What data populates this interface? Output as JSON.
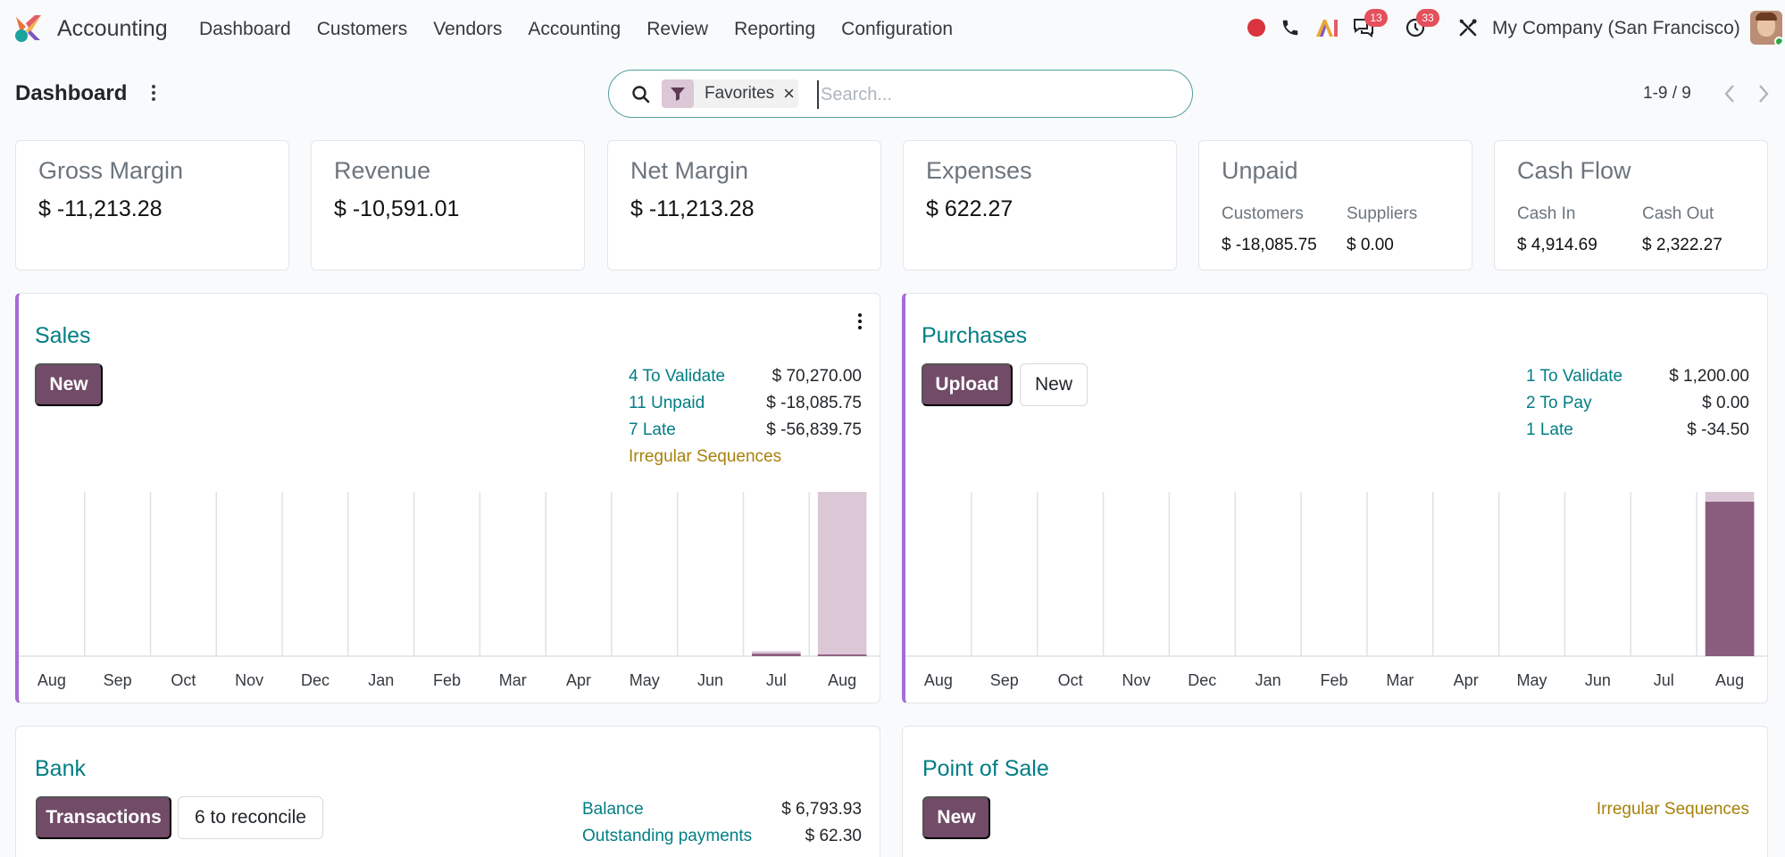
{
  "navbar": {
    "app_name": "Accounting",
    "menu": [
      "Dashboard",
      "Customers",
      "Vendors",
      "Accounting",
      "Review",
      "Reporting",
      "Configuration"
    ],
    "messages_count": "13",
    "activities_count": "33",
    "company": "My Company (San Francisco)",
    "icons": [
      "record-icon",
      "phone-icon",
      "ai-icon",
      "messages-icon",
      "activity-clock-icon",
      "tools-icon"
    ]
  },
  "control_panel": {
    "title": "Dashboard",
    "search": {
      "facet": "Favorites",
      "placeholder": "Search...",
      "value": ""
    },
    "pager": "1-9 / 9"
  },
  "kpis": {
    "gross_margin": {
      "title": "Gross Margin",
      "value": "$ -11,213.28"
    },
    "revenue": {
      "title": "Revenue",
      "value": "$ -10,591.01"
    },
    "net_margin": {
      "title": "Net Margin",
      "value": "$ -11,213.28"
    },
    "expenses": {
      "title": "Expenses",
      "value": "$ 622.27"
    },
    "unpaid": {
      "title": "Unpaid",
      "customers_label": "Customers",
      "customers_value": "$ -18,085.75",
      "suppliers_label": "Suppliers",
      "suppliers_value": "$ 0.00"
    },
    "cash_flow": {
      "title": "Cash Flow",
      "in_label": "Cash In",
      "in_value": "$ 4,914.69",
      "out_label": "Cash Out",
      "out_value": "$ 2,322.27"
    }
  },
  "sales": {
    "title": "Sales",
    "new_button": "New",
    "stats": [
      {
        "label": "4 To Validate",
        "value": "$ 70,270.00"
      },
      {
        "label": "11 Unpaid",
        "value": "$ -18,085.75"
      },
      {
        "label": "7 Late",
        "value": "$ -56,839.75"
      }
    ],
    "warning": "Irregular Sequences"
  },
  "purchases": {
    "title": "Purchases",
    "upload_button": "Upload",
    "new_button": "New",
    "stats": [
      {
        "label": "1 To Validate",
        "value": "$ 1,200.00"
      },
      {
        "label": "2 To Pay",
        "value": "$ 0.00"
      },
      {
        "label": "1 Late",
        "value": "$ -34.50"
      }
    ]
  },
  "bank": {
    "title": "Bank",
    "transactions_button": "Transactions",
    "reconcile_button": "6 to reconcile",
    "stats": [
      {
        "label": "Balance",
        "value": "$ 6,793.93"
      },
      {
        "label": "Outstanding payments",
        "value": "$ 62.30"
      }
    ]
  },
  "pos": {
    "title": "Point of Sale",
    "new_button": "New",
    "warning": "Irregular Sequences"
  },
  "colors": {
    "primary": "#714b67",
    "link": "#017e84",
    "warning": "#a8800b",
    "bar_light": "#dcc7d6",
    "bar_dark": "#8a5c7e",
    "accent_border": "#a66bd7"
  },
  "chart_data": [
    {
      "type": "bar",
      "name_ref": "Sales",
      "categories": [
        "Aug",
        "Sep",
        "Oct",
        "Nov",
        "Dec",
        "Jan",
        "Feb",
        "Mar",
        "Apr",
        "May",
        "Jun",
        "Jul",
        "Aug"
      ],
      "series": [
        {
          "values": [
            0,
            0,
            0,
            0,
            0,
            0,
            0,
            0,
            0,
            0,
            0,
            0.03,
            1.0
          ]
        },
        {
          "values": [
            0,
            0,
            0,
            0,
            0,
            0,
            0,
            0,
            0,
            0,
            0,
            0.015,
            0.01
          ]
        }
      ],
      "ylim": [
        0,
        1
      ],
      "grid": true
    },
    {
      "type": "bar",
      "name_ref": "Purchases",
      "categories": [
        "Aug",
        "Sep",
        "Oct",
        "Nov",
        "Dec",
        "Jan",
        "Feb",
        "Mar",
        "Apr",
        "May",
        "Jun",
        "Jul",
        "Aug"
      ],
      "series": [
        {
          "values": [
            0,
            0,
            0,
            0,
            0,
            0,
            0,
            0,
            0,
            0,
            0,
            0,
            1.0
          ]
        },
        {
          "values": [
            0,
            0,
            0,
            0,
            0,
            0,
            0,
            0,
            0,
            0,
            0,
            0,
            0.94
          ]
        }
      ],
      "ylim": [
        0,
        1
      ],
      "grid": true
    }
  ]
}
